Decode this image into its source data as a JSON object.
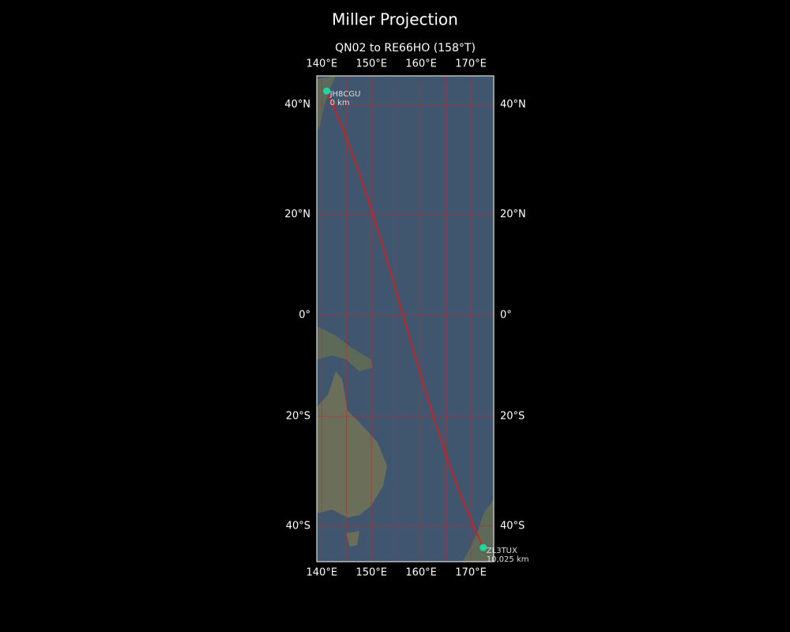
{
  "map": {
    "title": "Miller Projection",
    "subtitle": "QN02 to RE66HO (158°T)",
    "xlim": [
      139,
      174.6
    ],
    "ylim": [
      -45.9,
      44.8
    ],
    "xticks": [
      {
        "value": 140,
        "label": "140°E"
      },
      {
        "value": 150,
        "label": "150°E"
      },
      {
        "value": 160,
        "label": "160°E"
      },
      {
        "value": 170,
        "label": "170°E"
      }
    ],
    "yticks": [
      {
        "value": 40,
        "label": "40°N"
      },
      {
        "value": 20,
        "label": "20°N"
      },
      {
        "value": 0,
        "label": "0°"
      },
      {
        "value": -20,
        "label": "20°S"
      },
      {
        "value": -40,
        "label": "40°S"
      }
    ],
    "xgrid": [
      140,
      145,
      150,
      155,
      160,
      165,
      170
    ],
    "points": [
      {
        "name": "JH8CGU",
        "distance": "0 km",
        "lon": 141,
        "lat": 42.3
      },
      {
        "name": "ZL3TUX",
        "distance": "10,025 km",
        "lon": 172.5,
        "lat": -43.6
      }
    ]
  }
}
